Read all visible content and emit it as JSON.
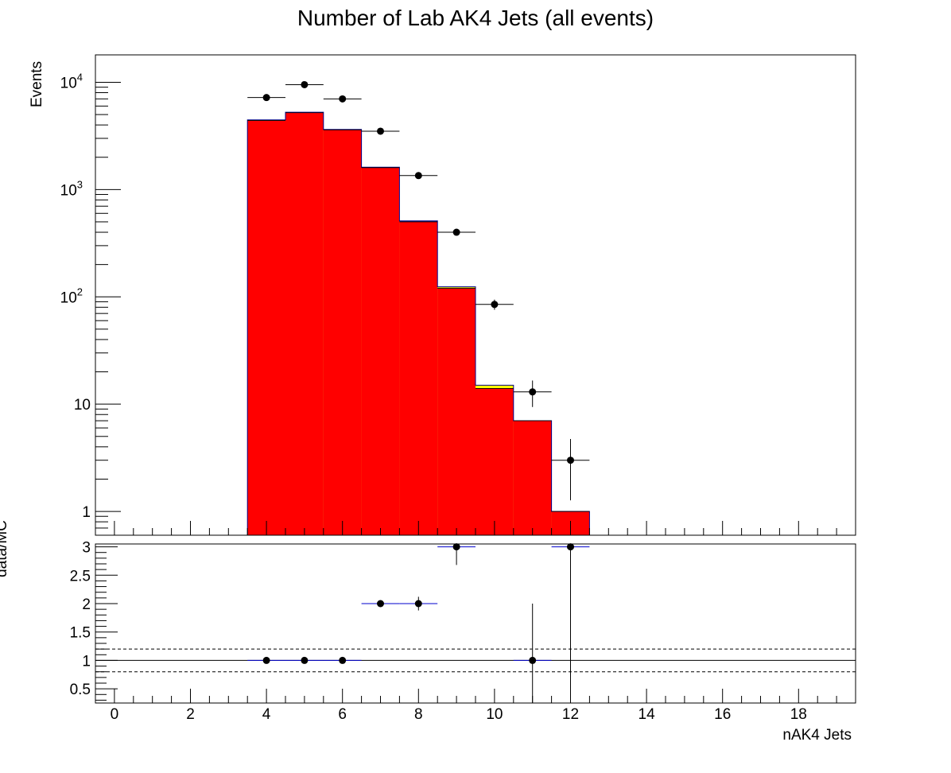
{
  "chart_data": {
    "type": "bar",
    "title": "Number of Lab AK4 Jets (all events)",
    "main": {
      "ylabel": "Events",
      "yscale": "log",
      "xlim": [
        -0.5,
        19.5
      ],
      "ylim": [
        0.6,
        18000
      ],
      "ytick_labels": [
        {
          "value": 1,
          "label": "1"
        },
        {
          "value": 10,
          "label": "10"
        },
        {
          "value": 100,
          "label": "10",
          "exponent": "2"
        },
        {
          "value": 1000,
          "label": "10",
          "exponent": "3"
        },
        {
          "value": 10000,
          "label": "10",
          "exponent": "4"
        }
      ],
      "stack_series": [
        {
          "name": "",
          "color": "#ff0000",
          "bins": [
            [
              3.5,
              4.5,
              4400
            ],
            [
              4.5,
              5.5,
              5200
            ],
            [
              5.5,
              6.5,
              3600
            ],
            [
              6.5,
              7.5,
              1600
            ],
            [
              7.5,
              8.5,
              500
            ],
            [
              8.5,
              9.5,
              120
            ],
            [
              9.5,
              10.5,
              14
            ],
            [
              10.5,
              11.5,
              7
            ],
            [
              11.5,
              12.5,
              1
            ]
          ]
        },
        {
          "name": "",
          "color": "#ffff00",
          "bins": [
            [
              3.5,
              4.5,
              4450
            ],
            [
              4.5,
              5.5,
              5250
            ],
            [
              5.5,
              6.5,
              3620
            ],
            [
              6.5,
              7.5,
              1610
            ],
            [
              7.5,
              8.5,
              505
            ],
            [
              8.5,
              9.5,
              123
            ],
            [
              9.5,
              10.5,
              15
            ],
            [
              10.5,
              11.5,
              7
            ],
            [
              11.5,
              12.5,
              1
            ]
          ]
        },
        {
          "name": "",
          "color": "#0000cc",
          "bins": [
            [
              3.5,
              4.5,
              4460
            ],
            [
              4.5,
              5.5,
              5260
            ],
            [
              5.5,
              6.5,
              3630
            ],
            [
              6.5,
              7.5,
              1615
            ],
            [
              7.5,
              8.5,
              510
            ],
            [
              8.5,
              9.5,
              124
            ],
            [
              9.5,
              10.5,
              15
            ],
            [
              10.5,
              11.5,
              7
            ],
            [
              11.5,
              12.5,
              1
            ]
          ]
        }
      ],
      "data_points": [
        {
          "x": 4,
          "y": 7200,
          "xlo": 3.5,
          "xhi": 4.5,
          "ylo": 7115,
          "yhi": 7285
        },
        {
          "x": 5,
          "y": 9500,
          "xlo": 4.5,
          "xhi": 5.5,
          "ylo": 9403,
          "yhi": 9597
        },
        {
          "x": 6,
          "y": 7000,
          "xlo": 5.5,
          "xhi": 6.5,
          "ylo": 6916,
          "yhi": 7084
        },
        {
          "x": 7,
          "y": 3500,
          "xlo": 6.5,
          "xhi": 7.5,
          "ylo": 3441,
          "yhi": 3559
        },
        {
          "x": 8,
          "y": 1350,
          "xlo": 7.5,
          "xhi": 8.5,
          "ylo": 1313,
          "yhi": 1387
        },
        {
          "x": 9,
          "y": 400,
          "xlo": 8.5,
          "xhi": 9.5,
          "ylo": 380,
          "yhi": 420
        },
        {
          "x": 10,
          "y": 85,
          "xlo": 9.5,
          "xhi": 10.5,
          "ylo": 75.8,
          "yhi": 94.2
        },
        {
          "x": 11,
          "y": 13,
          "xlo": 10.5,
          "xhi": 11.5,
          "ylo": 9.4,
          "yhi": 16.6
        },
        {
          "x": 12,
          "y": 3,
          "xlo": 11.5,
          "xhi": 12.5,
          "ylo": 1.27,
          "yhi": 4.73
        }
      ]
    },
    "ratio": {
      "ylabel": "data/MC",
      "ylim": [
        0.25,
        3.05
      ],
      "yticks": [
        0.5,
        1,
        1.5,
        2,
        2.5,
        3
      ],
      "ytick_labels": [
        "0.5",
        "1",
        "1.5",
        "2",
        "2.5",
        "3"
      ],
      "reference_line": 1,
      "band_lines": [
        0.8,
        1.2
      ],
      "points": [
        {
          "x": 4,
          "y": 1,
          "xlo": 3.5,
          "xhi": 4.5,
          "ylo": 1,
          "yhi": 1
        },
        {
          "x": 5,
          "y": 1,
          "xlo": 4.5,
          "xhi": 5.5,
          "ylo": 1,
          "yhi": 1
        },
        {
          "x": 6,
          "y": 1,
          "xlo": 5.5,
          "xhi": 6.5,
          "ylo": 1,
          "yhi": 1
        },
        {
          "x": 7,
          "y": 2,
          "xlo": 6.5,
          "xhi": 7.5,
          "ylo": 1.98,
          "yhi": 2.02
        },
        {
          "x": 8,
          "y": 2,
          "xlo": 7.5,
          "xhi": 8.5,
          "ylo": 1.88,
          "yhi": 2.12
        },
        {
          "x": 9,
          "y": 3,
          "xlo": 8.5,
          "xhi": 9.5,
          "ylo": 2.68,
          "yhi": 3.32
        },
        {
          "x": 11,
          "y": 1,
          "xlo": 10.5,
          "xhi": 11.5,
          "ylo": 0,
          "yhi": 2.0
        },
        {
          "x": 12,
          "y": 3,
          "xlo": 11.5,
          "xhi": 12.5,
          "ylo": 0,
          "yhi": 6
        }
      ]
    },
    "xlabel": "nAK4 Jets",
    "xticks": [
      0,
      2,
      4,
      6,
      8,
      10,
      12,
      14,
      16,
      18
    ],
    "xtick_labels": [
      "0",
      "2",
      "4",
      "6",
      "8",
      "10",
      "12",
      "14",
      "16",
      "18"
    ],
    "grid": false,
    "legend": "none"
  }
}
